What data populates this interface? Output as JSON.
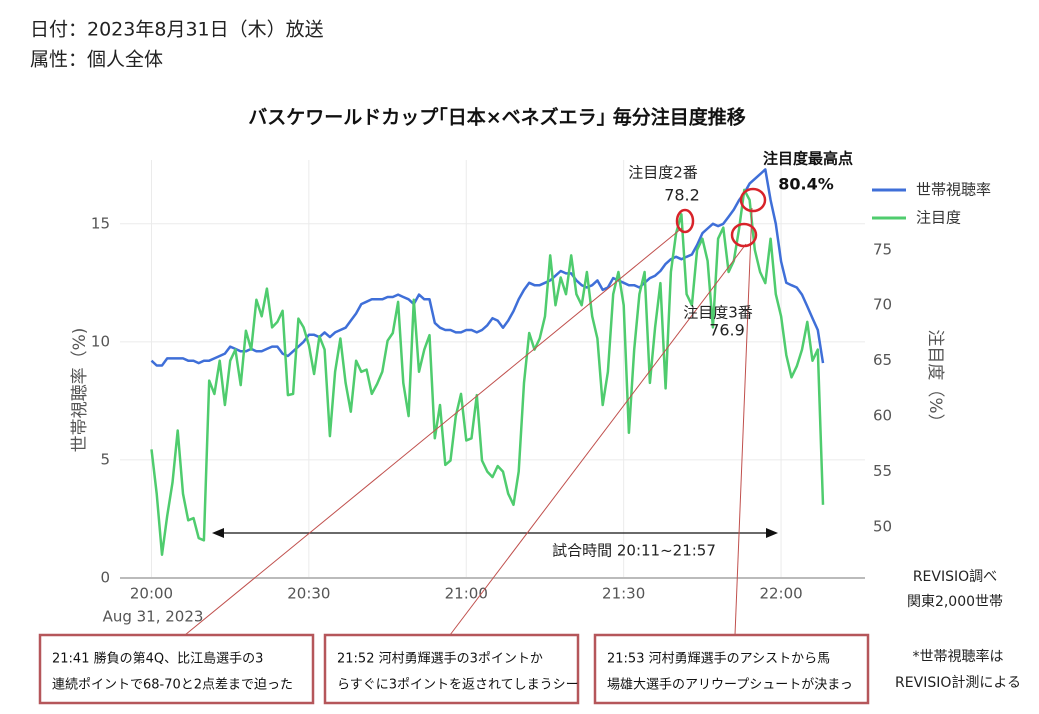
{
  "header": {
    "date": "日付：2023年8月31日（木）放送",
    "attribute": "属性：個人全体"
  },
  "chart_data": {
    "type": "line",
    "title": "バスケワールドカップ｢日本×ベネズエラ｣ 毎分注目度推移",
    "y_label": "世帯視聴率（%)",
    "y2_label": "注目度（%）",
    "x_sublabel": "Aug 31, 2023",
    "x": [
      "20:00",
      "20:01",
      "20:02",
      "20:03",
      "20:04",
      "20:05",
      "20:06",
      "20:07",
      "20:08",
      "20:09",
      "20:10",
      "20:11",
      "20:12",
      "20:13",
      "20:14",
      "20:15",
      "20:16",
      "20:17",
      "20:18",
      "20:19",
      "20:20",
      "20:21",
      "20:22",
      "20:23",
      "20:24",
      "20:25",
      "20:26",
      "20:27",
      "20:28",
      "20:29",
      "20:30",
      "20:31",
      "20:32",
      "20:33",
      "20:34",
      "20:35",
      "20:36",
      "20:37",
      "20:38",
      "20:39",
      "20:40",
      "20:41",
      "20:42",
      "20:43",
      "20:44",
      "20:45",
      "20:46",
      "20:47",
      "20:48",
      "20:49",
      "20:50",
      "20:51",
      "20:52",
      "20:53",
      "20:54",
      "20:55",
      "20:56",
      "20:57",
      "20:58",
      "20:59",
      "21:00",
      "21:01",
      "21:02",
      "21:03",
      "21:04",
      "21:05",
      "21:06",
      "21:07",
      "21:08",
      "21:09",
      "21:10",
      "21:11",
      "21:12",
      "21:13",
      "21:14",
      "21:15",
      "21:16",
      "21:17",
      "21:18",
      "21:19",
      "21:20",
      "21:21",
      "21:22",
      "21:23",
      "21:24",
      "21:25",
      "21:26",
      "21:27",
      "21:28",
      "21:29",
      "21:30",
      "21:31",
      "21:32",
      "21:33",
      "21:34",
      "21:35",
      "21:36",
      "21:37",
      "21:38",
      "21:39",
      "21:40",
      "21:41",
      "21:42",
      "21:43",
      "21:44",
      "21:45",
      "21:46",
      "21:47",
      "21:48",
      "21:49",
      "21:50",
      "21:51",
      "21:52",
      "21:53",
      "21:54",
      "21:55",
      "21:56",
      "21:57",
      "21:58",
      "21:59",
      "22:00",
      "22:01",
      "22:02",
      "22:03",
      "22:04",
      "22:05",
      "22:06",
      "22:07",
      "22:08"
    ],
    "xlim": [
      "19:54",
      "22:16"
    ],
    "xticks": [
      "20:00",
      "20:30",
      "21:00",
      "21:30",
      "22:00"
    ],
    "ylim": [
      0,
      17.7
    ],
    "yticks": [
      0,
      5,
      10,
      15
    ],
    "y2lim": [
      45.4,
      83.1
    ],
    "y2ticks": [
      50,
      55,
      60,
      65,
      70,
      75
    ],
    "grid": true,
    "legend": "top-right",
    "series": [
      {
        "name": "世帯視聴率",
        "color": "#3f6fd8",
        "values": [
          9.2,
          9.0,
          9.0,
          9.3,
          9.3,
          9.3,
          9.3,
          9.2,
          9.2,
          9.1,
          9.2,
          9.2,
          9.3,
          9.4,
          9.5,
          9.8,
          9.7,
          9.6,
          9.6,
          9.7,
          9.6,
          9.6,
          9.7,
          9.8,
          9.8,
          9.5,
          9.4,
          9.6,
          9.8,
          10.0,
          10.3,
          10.3,
          10.2,
          10.4,
          10.2,
          10.4,
          10.5,
          10.6,
          10.9,
          11.2,
          11.6,
          11.7,
          11.8,
          11.8,
          11.8,
          11.9,
          11.9,
          12.0,
          11.9,
          11.8,
          11.6,
          12.0,
          11.8,
          11.8,
          10.8,
          10.6,
          10.5,
          10.5,
          10.4,
          10.4,
          10.5,
          10.5,
          10.4,
          10.5,
          10.7,
          11.0,
          10.9,
          10.6,
          10.9,
          11.3,
          11.8,
          12.2,
          12.5,
          12.4,
          12.4,
          12.5,
          12.6,
          12.8,
          13.0,
          12.9,
          12.9,
          12.6,
          12.4,
          12.3,
          12.4,
          12.6,
          12.2,
          12.3,
          12.7,
          12.6,
          12.5,
          12.4,
          12.4,
          12.3,
          12.5,
          12.7,
          12.8,
          13.0,
          13.3,
          13.5,
          13.6,
          13.5,
          13.6,
          13.7,
          14.1,
          14.6,
          14.8,
          15.0,
          14.9,
          15.0,
          15.3,
          15.6,
          16.0,
          16.3,
          16.7,
          16.9,
          17.1,
          17.3,
          16.0,
          15.0,
          13.4,
          12.5,
          12.4,
          12.3,
          12.0,
          11.5,
          11.0,
          10.5,
          9.1
        ]
      },
      {
        "name": "注目度",
        "color": "#4fcc6e",
        "axis": "y2",
        "values": [
          57,
          53,
          47.5,
          51,
          54,
          58.7,
          53,
          50.6,
          50.8,
          49,
          48.8,
          63.2,
          62,
          65,
          61,
          65,
          66,
          62.8,
          67.7,
          66,
          70.5,
          69,
          71.5,
          68,
          68.5,
          69.5,
          61.9,
          62,
          68.8,
          68,
          66.4,
          63.8,
          67.2,
          66,
          58.2,
          64,
          67,
          63,
          60.4,
          65,
          64,
          64.2,
          62,
          62.9,
          64,
          66.8,
          67.5,
          70.3,
          63,
          60,
          70.5,
          64,
          66,
          67.3,
          58,
          61,
          55.6,
          56,
          60,
          62,
          57.8,
          58,
          61.9,
          56,
          55,
          54.5,
          55.5,
          55,
          53,
          52,
          55,
          63,
          67.5,
          66,
          67,
          69,
          74.5,
          70,
          72.5,
          71,
          74.5,
          71,
          70,
          73,
          69,
          67,
          61,
          64,
          71,
          73,
          70,
          58.5,
          66,
          71,
          73,
          63,
          68,
          72,
          62.5,
          73,
          76.5,
          78.2,
          71,
          70,
          75,
          76,
          74,
          68,
          76,
          77,
          73,
          74,
          76.9,
          80.4,
          79.5,
          75,
          73,
          72,
          76,
          71,
          69,
          65.5,
          63.5,
          64.5,
          66,
          68.5,
          65,
          66,
          52
        ]
      }
    ],
    "annotations": [
      {
        "title": "注目度2番",
        "value": "78.2"
      },
      {
        "title": "注目度3番",
        "value": "76.9"
      },
      {
        "title": "注目度最高点",
        "value": "80.4%"
      }
    ],
    "match_span": "試合時間 20:11~21:57",
    "source": [
      "REVISIO調べ",
      "関東2,000世帯"
    ],
    "footnote": [
      "*世帯視聴率は",
      "REVISIO計測による"
    ],
    "callouts": [
      [
        "21:41 勝負の第4Q、比江島選手の3",
        "連続ポイントで68-70と2点差まで迫った"
      ],
      [
        "21:52 河村勇輝選手の3ポイントか",
        "らすぐに3ポイントを返されてしまうシー"
      ],
      [
        "21:53 河村勇輝選手のアシストから馬",
        "場雄大選手のアリウープシュートが決まっ"
      ]
    ]
  }
}
